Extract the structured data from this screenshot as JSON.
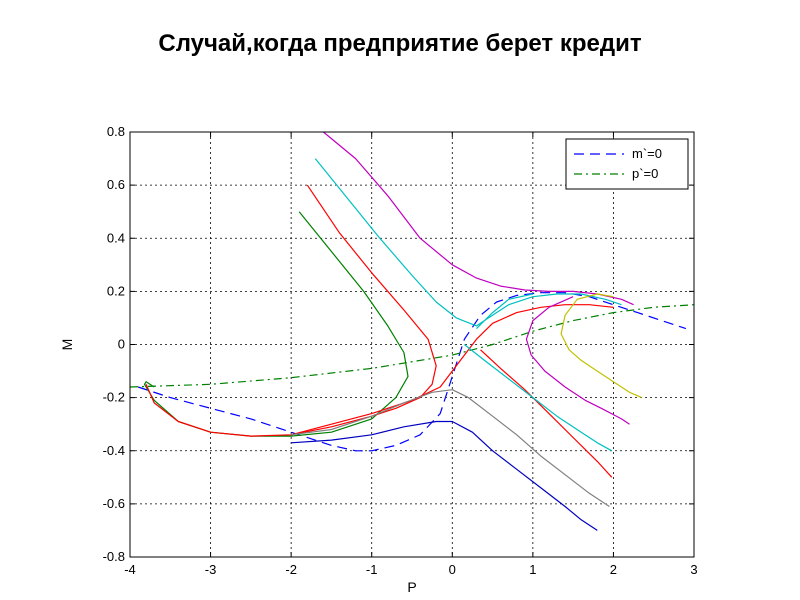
{
  "slide": {
    "title": "Случай,когда предприятие берет кредит"
  },
  "chart_data": {
    "type": "line",
    "title": "",
    "xlabel": "P",
    "ylabel": "M",
    "xlim": [
      -4,
      3
    ],
    "ylim": [
      -0.8,
      0.8
    ],
    "xticks": [
      -4,
      -3,
      -2,
      -1,
      0,
      1,
      2,
      3
    ],
    "yticks": [
      -0.8,
      -0.6,
      -0.4,
      -0.2,
      0,
      0.2,
      0.4,
      0.6,
      0.8
    ],
    "grid": true,
    "legend_position": "top-right",
    "series": [
      {
        "name": "m`=0",
        "color": "#0000ff",
        "style": "dashed",
        "x": [
          -3.9,
          -3.5,
          -3.0,
          -2.5,
          -2.0,
          -1.5,
          -1.2,
          -1.0,
          -0.7,
          -0.4,
          -0.15,
          0.0,
          0.15,
          0.35,
          0.55,
          0.8,
          1.1,
          1.4,
          1.7,
          2.0,
          2.3,
          2.6,
          2.9
        ],
        "y": [
          -0.16,
          -0.2,
          -0.24,
          -0.28,
          -0.33,
          -0.38,
          -0.4,
          -0.4,
          -0.38,
          -0.34,
          -0.26,
          -0.12,
          0.02,
          0.11,
          0.16,
          0.185,
          0.195,
          0.195,
          0.18,
          0.15,
          0.12,
          0.09,
          0.06
        ]
      },
      {
        "name": "p`=0",
        "color": "#008000",
        "style": "dashdot",
        "x": [
          -4.0,
          -3.0,
          -2.0,
          -1.0,
          0.0,
          0.5,
          1.0,
          1.5,
          2.0,
          2.5,
          3.0
        ],
        "y": [
          -0.16,
          -0.15,
          -0.125,
          -0.09,
          -0.04,
          0.0,
          0.05,
          0.09,
          0.12,
          0.14,
          0.15
        ]
      },
      {
        "color": "#008000",
        "x": [
          -1.9,
          -1.5,
          -1.1,
          -0.8,
          -0.6,
          -0.55,
          -0.7,
          -1.0,
          -1.5,
          -2.0,
          -2.5,
          -3.0,
          -3.4,
          -3.7,
          -3.82,
          -3.8,
          -3.7
        ],
        "y": [
          0.5,
          0.35,
          0.2,
          0.07,
          -0.03,
          -0.12,
          -0.2,
          -0.28,
          -0.33,
          -0.345,
          -0.345,
          -0.33,
          -0.29,
          -0.21,
          -0.15,
          -0.14,
          -0.16
        ]
      },
      {
        "color": "#ff0000",
        "x": [
          -1.8,
          -1.4,
          -1.0,
          -0.6,
          -0.3,
          -0.2,
          -0.25,
          -0.4,
          -0.7,
          -1.0,
          -1.5,
          -2.0,
          -2.5,
          -3.0,
          -3.4,
          -3.7,
          -3.8
        ],
        "y": [
          0.6,
          0.42,
          0.27,
          0.13,
          0.02,
          -0.08,
          -0.15,
          -0.2,
          -0.24,
          -0.27,
          -0.31,
          -0.34,
          -0.345,
          -0.33,
          -0.29,
          -0.22,
          -0.15
        ]
      },
      {
        "color": "#ff0000",
        "x": [
          -2.0,
          -1.5,
          -1.0,
          -0.5,
          -0.15,
          0.05,
          0.3,
          0.5,
          0.8,
          1.1,
          1.4,
          1.7,
          2.0
        ],
        "y": [
          -0.34,
          -0.3,
          -0.26,
          -0.21,
          -0.16,
          -0.08,
          0.02,
          0.08,
          0.12,
          0.14,
          0.15,
          0.15,
          0.14
        ]
      },
      {
        "color": "#ff0000",
        "x": [
          0.35,
          0.6,
          0.9,
          1.2,
          1.5,
          1.8,
          1.98
        ],
        "y": [
          -0.02,
          -0.09,
          -0.17,
          -0.26,
          -0.35,
          -0.44,
          -0.5
        ]
      },
      {
        "color": "#00c0c0",
        "x": [
          -1.7,
          -1.3,
          -0.9,
          -0.5,
          -0.2,
          0.05,
          0.3,
          0.45
        ],
        "y": [
          0.7,
          0.55,
          0.4,
          0.26,
          0.16,
          0.1,
          0.07,
          0.1
        ]
      },
      {
        "color": "#00c0c0",
        "x": [
          0.45,
          0.7,
          1.0,
          1.3,
          1.6,
          1.9,
          2.1
        ],
        "y": [
          0.1,
          0.15,
          0.18,
          0.19,
          0.19,
          0.17,
          0.15
        ]
      },
      {
        "color": "#00c0c0",
        "x": [
          0.15,
          0.4,
          0.7,
          1.0,
          1.3,
          1.6,
          1.8,
          1.98
        ],
        "y": [
          0.0,
          -0.06,
          -0.13,
          -0.2,
          -0.27,
          -0.33,
          -0.37,
          -0.4
        ]
      },
      {
        "color": "#00c0c0",
        "x": [
          0.3,
          0.5,
          0.7,
          1.0
        ],
        "y": [
          0.06,
          0.12,
          0.17,
          0.19
        ]
      },
      {
        "color": "#c000c0",
        "x": [
          -1.6,
          -1.2,
          -0.8,
          -0.4,
          0.0,
          0.3,
          0.6,
          0.9,
          1.2,
          1.5,
          1.8,
          2.1,
          2.25
        ],
        "y": [
          0.8,
          0.7,
          0.56,
          0.4,
          0.3,
          0.25,
          0.22,
          0.205,
          0.2,
          0.2,
          0.19,
          0.17,
          0.15
        ]
      },
      {
        "color": "#c000c0",
        "x": [
          1.5,
          1.2,
          1.0,
          0.92,
          0.98,
          1.15,
          1.4,
          1.65,
          1.85,
          2.1,
          2.2
        ],
        "y": [
          0.18,
          0.14,
          0.09,
          0.02,
          -0.04,
          -0.1,
          -0.16,
          -0.21,
          -0.24,
          -0.28,
          -0.3
        ]
      },
      {
        "color": "#808080",
        "x": [
          -2.0,
          -1.5,
          -1.0,
          -0.6,
          -0.25,
          0.0,
          0.2,
          0.5,
          0.8,
          1.1,
          1.4,
          1.7,
          1.95
        ],
        "y": [
          -0.34,
          -0.32,
          -0.27,
          -0.22,
          -0.18,
          -0.17,
          -0.2,
          -0.27,
          -0.34,
          -0.42,
          -0.49,
          -0.56,
          -0.61
        ]
      },
      {
        "color": "#0000c0",
        "x": [
          -2.0,
          -1.5,
          -1.0,
          -0.6,
          -0.2,
          0.0,
          0.25,
          0.5,
          0.8,
          1.1,
          1.4,
          1.6,
          1.8
        ],
        "y": [
          -0.37,
          -0.36,
          -0.34,
          -0.31,
          -0.29,
          -0.29,
          -0.33,
          -0.4,
          -0.47,
          -0.54,
          -0.61,
          -0.66,
          -0.7
        ]
      },
      {
        "color": "#c0c000",
        "x": [
          2.0,
          1.8,
          1.55,
          1.4,
          1.35,
          1.45,
          1.6,
          1.8,
          2.0,
          2.2,
          2.35
        ],
        "y": [
          0.18,
          0.19,
          0.17,
          0.11,
          0.04,
          -0.02,
          -0.06,
          -0.1,
          -0.14,
          -0.18,
          -0.2
        ]
      }
    ]
  }
}
